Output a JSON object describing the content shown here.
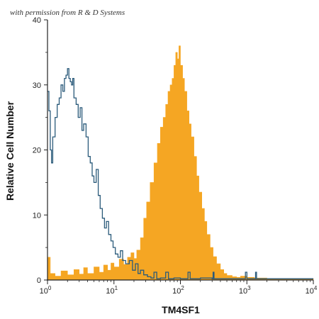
{
  "watermark": "with permission from R & D Systems",
  "chart_data": {
    "type": "histogram",
    "xlabel": "TM4SF1",
    "ylabel": "Relative Cell Number",
    "xscale": "log",
    "xlim": [
      1,
      10000
    ],
    "ylim": [
      0,
      40
    ],
    "x_ticks": [
      {
        "value": 1,
        "base": "10",
        "exp": "0"
      },
      {
        "value": 10,
        "base": "10",
        "exp": "1"
      },
      {
        "value": 100,
        "base": "10",
        "exp": "2"
      },
      {
        "value": 1000,
        "base": "10",
        "exp": "3"
      },
      {
        "value": 10000,
        "base": "10",
        "exp": "4"
      }
    ],
    "y_ticks": [
      0,
      10,
      20,
      30,
      40
    ],
    "grid": false,
    "series": [
      {
        "style": "filled",
        "color": "#f5a623",
        "points": [
          [
            1.0,
            3.5
          ],
          [
            1.1,
            1.0
          ],
          [
            1.3,
            0.6
          ],
          [
            1.6,
            1.4
          ],
          [
            2.0,
            0.8
          ],
          [
            2.5,
            1.6
          ],
          [
            3.0,
            0.9
          ],
          [
            3.5,
            1.9
          ],
          [
            4.0,
            1.0
          ],
          [
            5.0,
            2.0
          ],
          [
            6.0,
            1.2
          ],
          [
            7.0,
            2.3
          ],
          [
            8.0,
            1.5
          ],
          [
            9.0,
            2.6
          ],
          [
            10.0,
            2.0
          ],
          [
            12.0,
            3.2
          ],
          [
            14.0,
            2.4
          ],
          [
            16.0,
            3.5
          ],
          [
            18.0,
            4.2
          ],
          [
            20.0,
            3.3
          ],
          [
            22.0,
            4.6
          ],
          [
            25.0,
            6.5
          ],
          [
            28.0,
            9.5
          ],
          [
            31.0,
            12.0
          ],
          [
            35.0,
            15.0
          ],
          [
            40.0,
            18.0
          ],
          [
            45.0,
            21.0
          ],
          [
            50.0,
            23.5
          ],
          [
            55.0,
            25.0
          ],
          [
            60.0,
            27.0
          ],
          [
            65.0,
            29.0
          ],
          [
            70.0,
            30.0
          ],
          [
            75.0,
            31.0
          ],
          [
            80.0,
            33.0
          ],
          [
            85.0,
            35.0
          ],
          [
            90.0,
            34.0
          ],
          [
            95.0,
            36.0
          ],
          [
            100.0,
            33.0
          ],
          [
            108.0,
            31.0
          ],
          [
            115.0,
            29.0
          ],
          [
            125.0,
            26.0
          ],
          [
            135.0,
            24.0
          ],
          [
            145.0,
            22.0
          ],
          [
            160.0,
            19.0
          ],
          [
            175.0,
            16.0
          ],
          [
            190.0,
            13.5
          ],
          [
            210.0,
            11.0
          ],
          [
            230.0,
            9.0
          ],
          [
            250.0,
            7.0
          ],
          [
            280.0,
            5.0
          ],
          [
            310.0,
            3.6
          ],
          [
            350.0,
            2.5
          ],
          [
            400.0,
            1.6
          ],
          [
            450.0,
            1.0
          ],
          [
            500.0,
            0.7
          ],
          [
            600.0,
            0.5
          ],
          [
            700.0,
            0.4
          ],
          [
            800.0,
            0.6
          ],
          [
            1000.0,
            0.4
          ],
          [
            1300.0,
            0.3
          ],
          [
            2000.0,
            0.2
          ],
          [
            4000.0,
            0.2
          ],
          [
            10000.0,
            0.2
          ]
        ]
      },
      {
        "style": "outline",
        "color": "#2a5a7a",
        "points": [
          [
            1.0,
            29.0
          ],
          [
            1.05,
            26.0
          ],
          [
            1.1,
            20.0
          ],
          [
            1.15,
            18.0
          ],
          [
            1.2,
            22.0
          ],
          [
            1.3,
            25.0
          ],
          [
            1.4,
            27.0
          ],
          [
            1.5,
            28.0
          ],
          [
            1.6,
            30.0
          ],
          [
            1.7,
            29.0
          ],
          [
            1.8,
            31.0
          ],
          [
            1.9,
            31.5
          ],
          [
            2.0,
            32.5
          ],
          [
            2.1,
            31.0
          ],
          [
            2.2,
            30.5
          ],
          [
            2.3,
            30.0
          ],
          [
            2.4,
            31.0
          ],
          [
            2.5,
            28.0
          ],
          [
            2.7,
            27.0
          ],
          [
            2.9,
            25.0
          ],
          [
            3.1,
            26.5
          ],
          [
            3.3,
            23.0
          ],
          [
            3.5,
            24.0
          ],
          [
            3.8,
            22.0
          ],
          [
            4.1,
            19.0
          ],
          [
            4.4,
            18.0
          ],
          [
            4.7,
            16.0
          ],
          [
            5.0,
            15.0
          ],
          [
            5.4,
            17.0
          ],
          [
            5.8,
            13.0
          ],
          [
            6.2,
            11.0
          ],
          [
            6.7,
            9.5
          ],
          [
            7.2,
            8.0
          ],
          [
            7.7,
            9.0
          ],
          [
            8.3,
            7.0
          ],
          [
            9.0,
            6.0
          ],
          [
            9.7,
            5.0
          ],
          [
            10.5,
            4.0
          ],
          [
            11.5,
            3.5
          ],
          [
            12.5,
            4.5
          ],
          [
            13.5,
            3.0
          ],
          [
            15.0,
            2.5
          ],
          [
            17.0,
            3.0
          ],
          [
            19.0,
            1.5
          ],
          [
            21.0,
            2.5
          ],
          [
            23.0,
            1.0
          ],
          [
            25.0,
            1.5
          ],
          [
            28.0,
            0.8
          ],
          [
            32.0,
            0.5
          ],
          [
            36.0,
            0.3
          ],
          [
            40.0,
            1.2
          ],
          [
            44.0,
            0.2
          ],
          [
            50.0,
            0.3
          ],
          [
            60.0,
            1.2
          ],
          [
            66.0,
            0.2
          ],
          [
            80.0,
            0.3
          ],
          [
            100.0,
            0.2
          ],
          [
            120.0,
            0.2
          ],
          [
            130.0,
            1.2
          ],
          [
            140.0,
            0.2
          ],
          [
            170.0,
            0.2
          ],
          [
            200.0,
            0.3
          ],
          [
            300.0,
            0.2
          ],
          [
            310.0,
            1.2
          ],
          [
            320.0,
            0.2
          ],
          [
            500.0,
            0.2
          ],
          [
            900.0,
            0.2
          ],
          [
            950.0,
            1.2
          ],
          [
            1000.0,
            0.2
          ],
          [
            1300.0,
            0.2
          ],
          [
            1350.0,
            1.2
          ],
          [
            1400.0,
            0.2
          ],
          [
            3000.0,
            0.2
          ],
          [
            10000.0,
            0.2
          ]
        ]
      }
    ]
  }
}
